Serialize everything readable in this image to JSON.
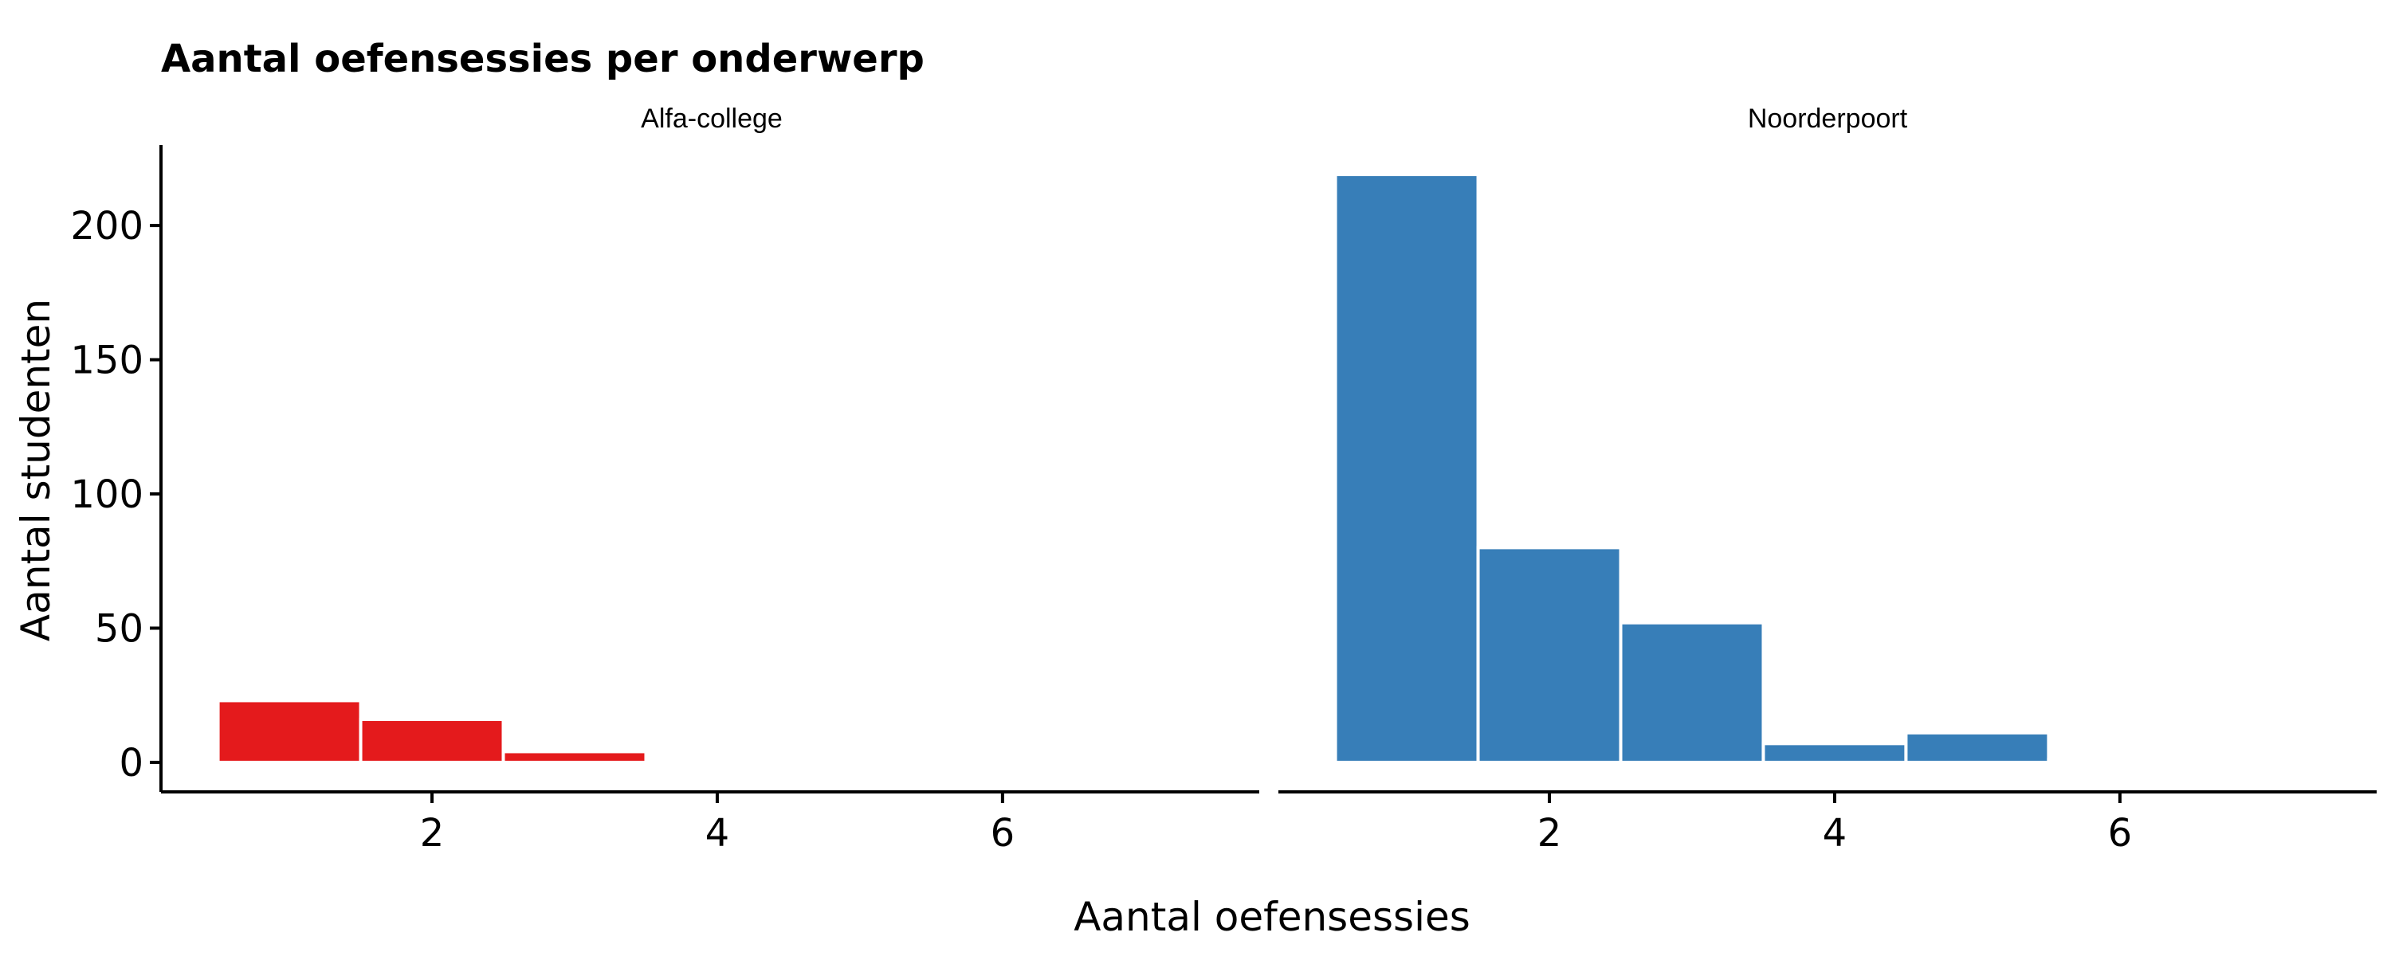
{
  "chart_data": {
    "type": "bar",
    "title": "Aantal oefensessies per onderwerp",
    "xlabel": "Aantal oefensessies",
    "ylabel": "Aantal studenten",
    "xlim": [
      0.1,
      7.8
    ],
    "ylim": [
      -11,
      230
    ],
    "xticks": [
      2,
      4,
      6
    ],
    "yticks": [
      0,
      50,
      100,
      150,
      200
    ],
    "bin_width": 1,
    "grid": false,
    "panels": [
      {
        "name": "Alfa-college",
        "color": "#E41A1C",
        "bins": [
          {
            "x": 1,
            "count": 23
          },
          {
            "x": 2,
            "count": 16
          },
          {
            "x": 3,
            "count": 4
          }
        ]
      },
      {
        "name": "Noorderpoort",
        "color": "#377EB8",
        "bins": [
          {
            "x": 1,
            "count": 219
          },
          {
            "x": 2,
            "count": 80
          },
          {
            "x": 3,
            "count": 52
          },
          {
            "x": 4,
            "count": 7
          },
          {
            "x": 5,
            "count": 11
          },
          {
            "x": 6,
            "count": 1
          },
          {
            "x": 7,
            "count": 1
          }
        ]
      }
    ]
  }
}
